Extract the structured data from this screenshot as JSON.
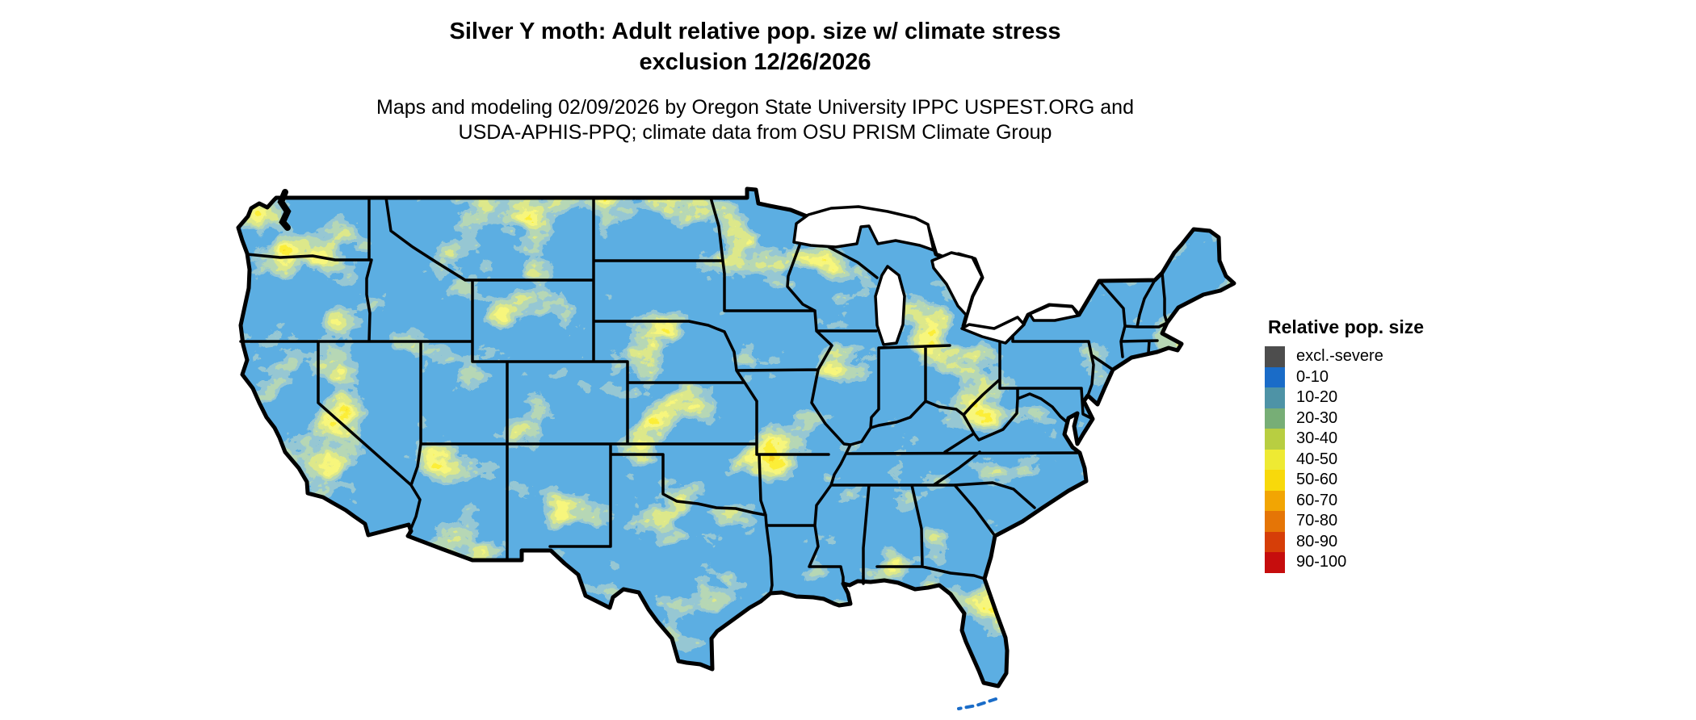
{
  "title": {
    "line1": "Silver Y moth: Adult relative pop. size w/ climate stress",
    "line2": "exclusion 12/26/2026"
  },
  "subtitle": {
    "line1": "Maps and modeling 02/09/2026 by Oregon State University IPPC USPEST.ORG and",
    "line2": "USDA-APHIS-PPQ; climate data from OSU PRISM Climate Group"
  },
  "map": {
    "region": "Continental United States (lower 48 states)",
    "type": "raster choropleth with black state borders",
    "border_color": "#000000",
    "water_color": "#FFFFFF",
    "dominant_class": "0-10"
  },
  "legend": {
    "title": "Relative pop. size",
    "items": [
      {
        "label": "excl.-severe",
        "color": "#4D4D4D"
      },
      {
        "label": "0-10",
        "color": "#1A6CC8"
      },
      {
        "label": "10-20",
        "color": "#4E93A6"
      },
      {
        "label": "20-30",
        "color": "#77AE76"
      },
      {
        "label": "30-40",
        "color": "#B8CE41"
      },
      {
        "label": "40-50",
        "color": "#EEEA33"
      },
      {
        "label": "50-60",
        "color": "#F8D90B"
      },
      {
        "label": "60-70",
        "color": "#F2A503"
      },
      {
        "label": "70-80",
        "color": "#E57506"
      },
      {
        "label": "80-90",
        "color": "#D63E08"
      },
      {
        "label": "90-100",
        "color": "#C60D0D"
      }
    ]
  }
}
